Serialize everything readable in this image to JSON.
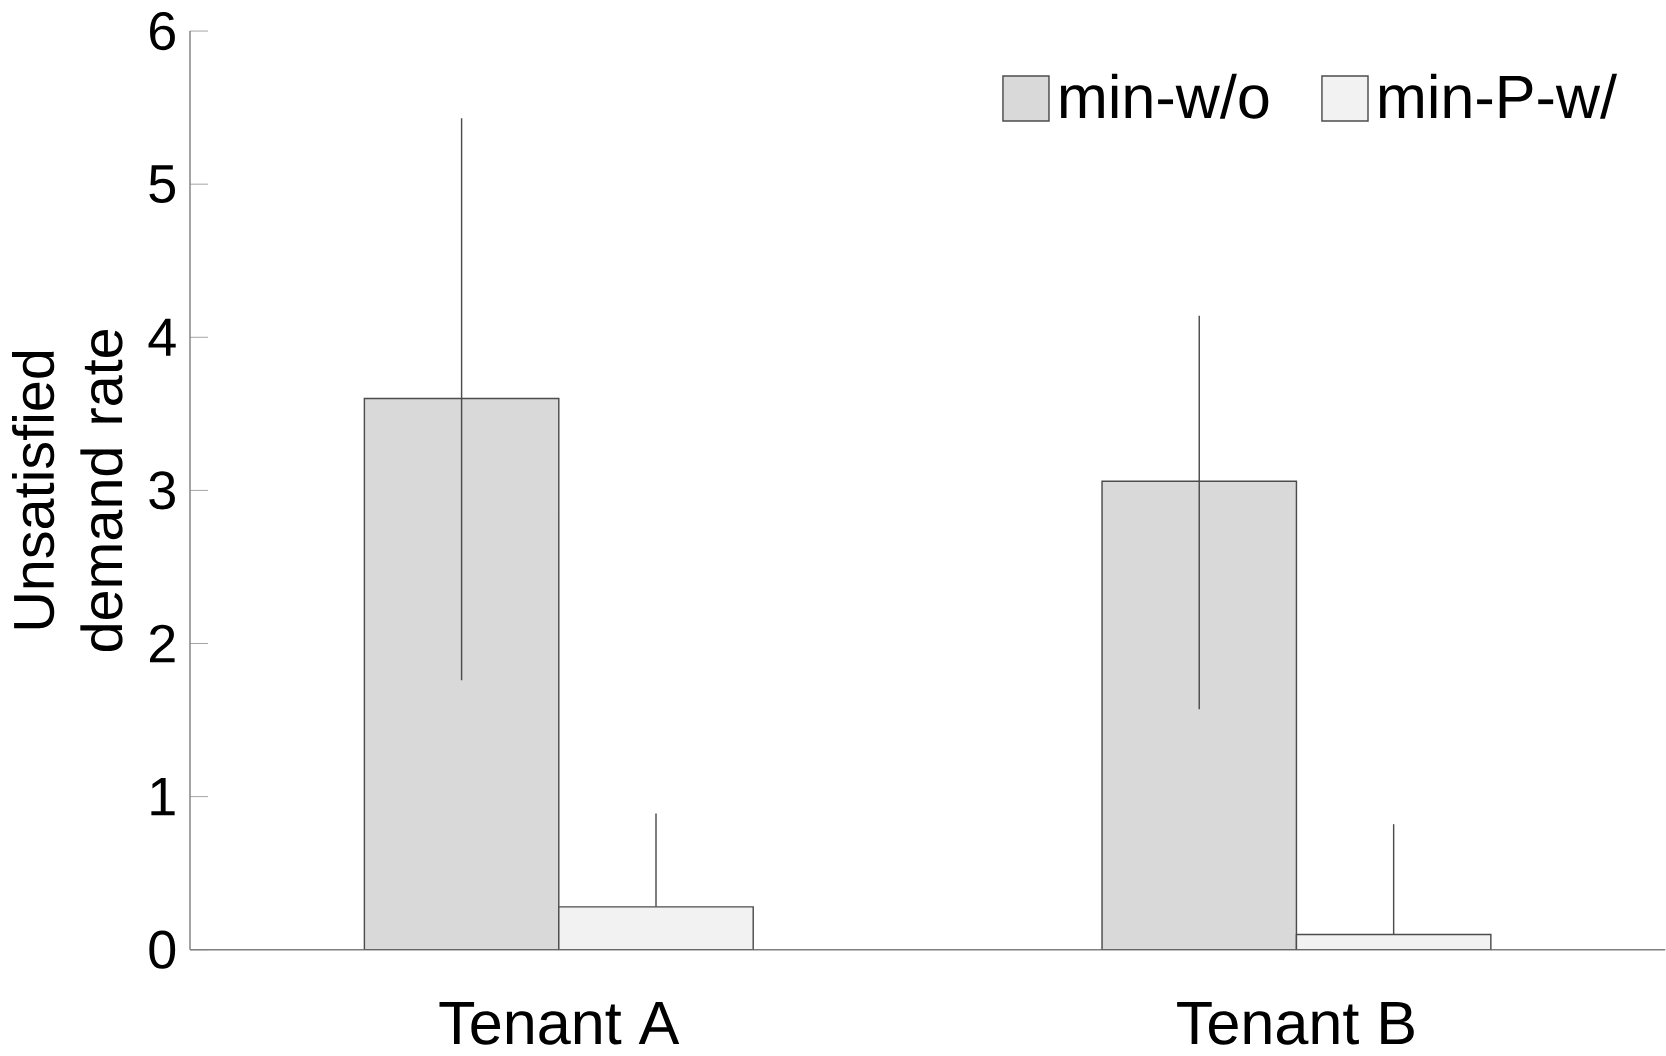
{
  "chart_data": {
    "type": "bar",
    "ylabel": "Unsatisfied demand rate",
    "categories": [
      "Tenant A",
      "Tenant B"
    ],
    "series": [
      {
        "name": "min-w/o",
        "color": "#d9d9d9",
        "values": [
          3.6,
          3.06
        ],
        "errors": [
          [
            1.76,
            5.43
          ],
          [
            1.57,
            4.14
          ]
        ]
      },
      {
        "name": "min-P-w/",
        "color": "#f2f2f2",
        "values": [
          0.28,
          0.1
        ],
        "errors": [
          [
            0.28,
            0.89
          ],
          [
            0.1,
            0.82
          ]
        ]
      }
    ],
    "ylim": [
      0,
      6
    ],
    "yticks": [
      0,
      1,
      2,
      3,
      4,
      5,
      6
    ],
    "grid": false,
    "legend": "top right"
  }
}
